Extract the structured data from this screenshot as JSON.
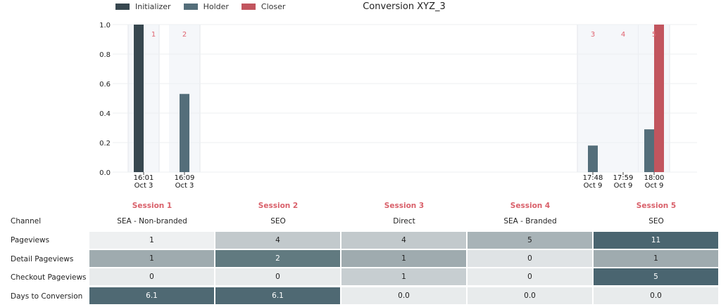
{
  "legend": [
    {
      "label": "Initializer",
      "color": "#37474f"
    },
    {
      "label": "Holder",
      "color": "#546e7a"
    },
    {
      "label": "Closer",
      "color": "#c2555e"
    }
  ],
  "chart_data": {
    "type": "bar",
    "title": "Conversion XYZ_3",
    "ylim": [
      0,
      1.0
    ],
    "yticks": [
      "0.0",
      "0.2",
      "0.4",
      "0.6",
      "0.8",
      "1.0"
    ],
    "sessions": [
      {
        "number": "1",
        "time": "16:01",
        "date": "Oct 3"
      },
      {
        "number": "2",
        "time": "16:09",
        "date": "Oct 3"
      },
      {
        "number": "3",
        "time": "17:48",
        "date": "Oct 9"
      },
      {
        "number": "4",
        "time": "17:59",
        "date": "Oct 9"
      },
      {
        "number": "5",
        "time": "18:00",
        "date": "Oct 9"
      }
    ],
    "bars": [
      {
        "session": 1,
        "role": "Initializer",
        "value": 1.0
      },
      {
        "session": 2,
        "role": "Holder",
        "value": 0.53
      },
      {
        "session": 3,
        "role": "Holder",
        "value": 0.18
      },
      {
        "session": 5,
        "role": "Holder",
        "value": 0.29
      },
      {
        "session": 5,
        "role": "Closer",
        "value": 1.0
      }
    ]
  },
  "table": {
    "session_headers": [
      "Session 1",
      "Session 2",
      "Session 3",
      "Session 4",
      "Session 5"
    ],
    "channel_label": "Channel",
    "channels": [
      "SEA - Non-branded",
      "SEO",
      "Direct",
      "SEA - Branded",
      "SEO"
    ],
    "rows": [
      {
        "label": "Pageviews",
        "values": [
          "1",
          "4",
          "4",
          "5",
          "11"
        ],
        "colors": [
          "#eef0f1",
          "#c2c9cc",
          "#c2c9cc",
          "#a8b3b7",
          "#4a6570"
        ]
      },
      {
        "label": "Detail Pageviews",
        "values": [
          "1",
          "2",
          "1",
          "0",
          "1"
        ],
        "colors": [
          "#9fabaf",
          "#617a80",
          "#9fabaf",
          "#dfe3e5",
          "#9fabaf"
        ]
      },
      {
        "label": "Checkout Pageviews",
        "values": [
          "0",
          "0",
          "1",
          "0",
          "5"
        ],
        "colors": [
          "#e8ebec",
          "#e8ebec",
          "#c7ced1",
          "#e8ebec",
          "#4a6570"
        ]
      },
      {
        "label": "Days to Conversion",
        "values": [
          "6.1",
          "6.1",
          "0.0",
          "0.0",
          "0.0"
        ],
        "colors": [
          "#4f6973",
          "#4f6973",
          "#e8ebec",
          "#e8ebec",
          "#e8ebec"
        ]
      }
    ]
  }
}
